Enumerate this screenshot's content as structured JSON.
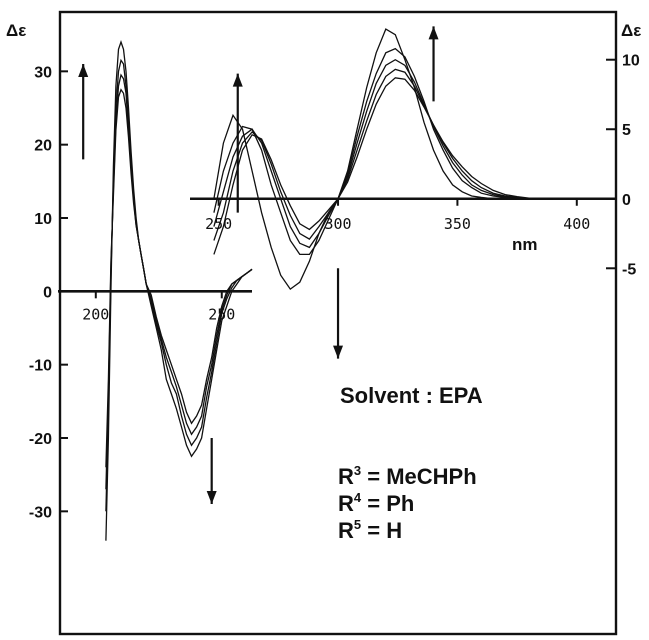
{
  "chart_data": [
    {
      "type": "line",
      "title": "",
      "xlabel": "",
      "ylabel": "Δε",
      "xlim": [
        185,
        262
      ],
      "ylim": [
        -38,
        37
      ],
      "x_ticks": [
        {
          "value": 200,
          "label": "200"
        },
        {
          "value": 250,
          "label": "250"
        }
      ],
      "y_ticks": [
        {
          "value": 30,
          "label": "30"
        },
        {
          "value": 20,
          "label": "20"
        },
        {
          "value": 10,
          "label": "10"
        },
        {
          "value": 0,
          "label": "0"
        },
        {
          "value": -10,
          "label": "-10"
        },
        {
          "value": -20,
          "label": "-20"
        },
        {
          "value": -30,
          "label": "-30"
        }
      ],
      "arrows": [
        {
          "x": 195,
          "direction": "up"
        },
        {
          "x": 246,
          "direction": "down"
        }
      ],
      "series": [
        {
          "x": [
            204,
            205,
            206,
            207,
            208,
            209,
            210,
            211,
            212,
            213,
            214,
            215,
            216,
            217,
            218,
            219,
            220,
            222,
            224,
            226,
            228,
            230,
            232,
            234,
            236,
            238,
            240,
            242,
            244,
            246,
            248,
            250,
            252,
            254,
            256,
            258,
            260,
            262
          ],
          "values": [
            -34,
            -20,
            0,
            17,
            28,
            33,
            34,
            33,
            30,
            25,
            19,
            14,
            10,
            7,
            5,
            3,
            1,
            -2,
            -5,
            -8,
            -12,
            -14,
            -16,
            -18.5,
            -21,
            -22.5,
            -21.5,
            -20,
            -16,
            -12,
            -8,
            -4,
            -2,
            0,
            1,
            2,
            2.5,
            3
          ]
        },
        {
          "x": [
            204,
            205,
            206,
            207,
            208,
            209,
            210,
            211,
            212,
            213,
            214,
            215,
            216,
            217,
            218,
            219,
            220,
            222,
            224,
            226,
            228,
            230,
            232,
            234,
            236,
            238,
            240,
            242,
            244,
            246,
            248,
            250,
            252,
            254,
            256,
            258,
            260,
            262
          ],
          "values": [
            -30,
            -16,
            2,
            15,
            25,
            30,
            31.5,
            31,
            28,
            23,
            18,
            13,
            9.5,
            7,
            5,
            3,
            1,
            -1.5,
            -4.5,
            -7,
            -10,
            -12.5,
            -14,
            -17,
            -19.5,
            -21,
            -20,
            -18.5,
            -14.5,
            -11,
            -7,
            -3,
            -1,
            0.5,
            1.5,
            2,
            2.5,
            3
          ]
        },
        {
          "x": [
            204,
            205,
            206,
            207,
            208,
            209,
            210,
            211,
            212,
            213,
            214,
            215,
            216,
            217,
            218,
            219,
            220,
            222,
            224,
            226,
            228,
            230,
            232,
            234,
            236,
            238,
            240,
            242,
            244,
            246,
            248,
            250,
            252,
            254,
            256,
            258,
            260,
            262
          ],
          "values": [
            -27,
            -14,
            3,
            14,
            23,
            28,
            29.5,
            29,
            27,
            22,
            17,
            12.5,
            9,
            7,
            5,
            3,
            1,
            -1,
            -4,
            -6.5,
            -9,
            -11,
            -13,
            -15.5,
            -18,
            -19.5,
            -18.5,
            -17,
            -13,
            -10,
            -6,
            -2.5,
            -0.5,
            1,
            1.5,
            2,
            2.5,
            3
          ]
        },
        {
          "x": [
            204,
            205,
            206,
            207,
            208,
            209,
            210,
            211,
            212,
            213,
            214,
            215,
            216,
            217,
            218,
            219,
            220,
            222,
            224,
            226,
            228,
            230,
            232,
            234,
            236,
            238,
            240,
            242,
            244,
            246,
            248,
            250,
            252,
            254,
            256,
            258,
            260,
            262
          ],
          "values": [
            -24,
            -12,
            4,
            13,
            22,
            26.5,
            27.5,
            27,
            25,
            21,
            16,
            12,
            9,
            7,
            5,
            3,
            1,
            -0.5,
            -3.5,
            -6,
            -8,
            -10,
            -12,
            -14,
            -16.5,
            -18,
            -17,
            -15.5,
            -12,
            -9,
            -5,
            -2,
            0,
            1,
            1.5,
            2,
            2.5,
            3
          ]
        }
      ]
    },
    {
      "type": "line",
      "title": "",
      "xlabel": "nm",
      "ylabel": "Δε",
      "xlim": [
        238,
        416
      ],
      "ylim": [
        -8,
        13
      ],
      "x_ticks": [
        {
          "value": 250,
          "label": "250"
        },
        {
          "value": 300,
          "label": "300"
        },
        {
          "value": 350,
          "label": "350"
        },
        {
          "value": 400,
          "label": "400"
        }
      ],
      "y_ticks": [
        {
          "value": 10,
          "label": "10"
        },
        {
          "value": 5,
          "label": "5"
        },
        {
          "value": 0,
          "label": "0"
        },
        {
          "value": -5,
          "label": "-5"
        }
      ],
      "arrows": [
        {
          "x": 258,
          "direction": "up"
        },
        {
          "x": 300,
          "direction": "down"
        },
        {
          "x": 340,
          "direction": "up"
        }
      ],
      "series": [
        {
          "x": [
            248,
            252,
            256,
            260,
            264,
            268,
            272,
            276,
            280,
            284,
            288,
            292,
            296,
            300,
            304,
            308,
            312,
            316,
            320,
            324,
            328,
            332,
            336,
            340,
            344,
            348,
            352,
            356,
            360,
            365,
            370,
            375,
            380,
            390
          ],
          "values": [
            0,
            4,
            6,
            5,
            2,
            -1,
            -3.5,
            -5.5,
            -6.5,
            -6,
            -4.5,
            -2.5,
            -1,
            0,
            2,
            5,
            8,
            10.5,
            12.2,
            11.8,
            10,
            8,
            5.5,
            3.5,
            2,
            1,
            0.5,
            0.2,
            0.1,
            0,
            0,
            0,
            0,
            0
          ]
        },
        {
          "x": [
            248,
            252,
            256,
            260,
            264,
            268,
            272,
            276,
            280,
            284,
            288,
            292,
            296,
            300,
            304,
            308,
            312,
            316,
            320,
            324,
            328,
            332,
            336,
            340,
            344,
            348,
            352,
            356,
            360,
            365,
            370,
            375,
            380,
            390
          ],
          "values": [
            -1,
            2,
            4,
            5.2,
            5,
            3.5,
            1,
            -1,
            -3,
            -4,
            -4,
            -3,
            -1.5,
            0,
            1.8,
            4.5,
            7,
            9,
            10.5,
            10.8,
            10.2,
            8.8,
            7,
            5,
            3.5,
            2.2,
            1.3,
            0.8,
            0.4,
            0.2,
            0.1,
            0,
            0,
            0
          ]
        },
        {
          "x": [
            248,
            252,
            256,
            260,
            264,
            268,
            272,
            276,
            280,
            284,
            288,
            292,
            296,
            300,
            304,
            308,
            312,
            316,
            320,
            324,
            328,
            332,
            336,
            340,
            344,
            348,
            352,
            356,
            360,
            365,
            370,
            375,
            380,
            390
          ],
          "values": [
            -2,
            0.5,
            3,
            4.5,
            5,
            4,
            2,
            0,
            -2,
            -3.2,
            -3.5,
            -2.5,
            -1.2,
            0,
            1.6,
            4,
            6.3,
            8.3,
            9.6,
            10,
            9.6,
            8.4,
            6.8,
            5.2,
            3.8,
            2.6,
            1.7,
            1,
            0.6,
            0.3,
            0.15,
            0.05,
            0,
            0
          ]
        },
        {
          "x": [
            248,
            252,
            256,
            260,
            264,
            268,
            272,
            276,
            280,
            284,
            288,
            292,
            296,
            300,
            304,
            308,
            312,
            316,
            320,
            324,
            328,
            332,
            336,
            340,
            344,
            348,
            352,
            356,
            360,
            365,
            370,
            375,
            380,
            390
          ],
          "values": [
            -3,
            -1,
            2,
            4,
            4.8,
            4.2,
            2.5,
            0.5,
            -1.2,
            -2.5,
            -2.9,
            -2,
            -1,
            0,
            1.4,
            3.5,
            5.6,
            7.5,
            8.8,
            9.3,
            9.1,
            8.1,
            6.7,
            5.3,
            4,
            2.9,
            2,
            1.3,
            0.8,
            0.4,
            0.2,
            0.1,
            0,
            0
          ]
        },
        {
          "x": [
            248,
            252,
            256,
            260,
            264,
            268,
            272,
            276,
            280,
            284,
            288,
            292,
            296,
            300,
            304,
            308,
            312,
            316,
            320,
            324,
            328,
            332,
            336,
            340,
            344,
            348,
            352,
            356,
            360,
            365,
            370,
            375,
            380,
            390
          ],
          "values": [
            -4,
            -2,
            1,
            3.5,
            4.6,
            4.3,
            2.8,
            1,
            -0.5,
            -1.8,
            -2.2,
            -1.6,
            -0.8,
            0,
            1.2,
            3,
            5,
            6.8,
            8.1,
            8.7,
            8.6,
            7.8,
            6.6,
            5.3,
            4.1,
            3.1,
            2.3,
            1.6,
            1.1,
            0.6,
            0.3,
            0.15,
            0.05,
            0
          ]
        }
      ]
    }
  ],
  "annotations": {
    "solvent": "Solvent : EPA",
    "r3_sym": "R",
    "r3_sup": "3",
    "r3_val": " = MeCHPh",
    "r4_sym": "R",
    "r4_sup": "4",
    "r4_val": " = Ph",
    "r5_sym": "R",
    "r5_sup": "5",
    "r5_val": " = H"
  }
}
